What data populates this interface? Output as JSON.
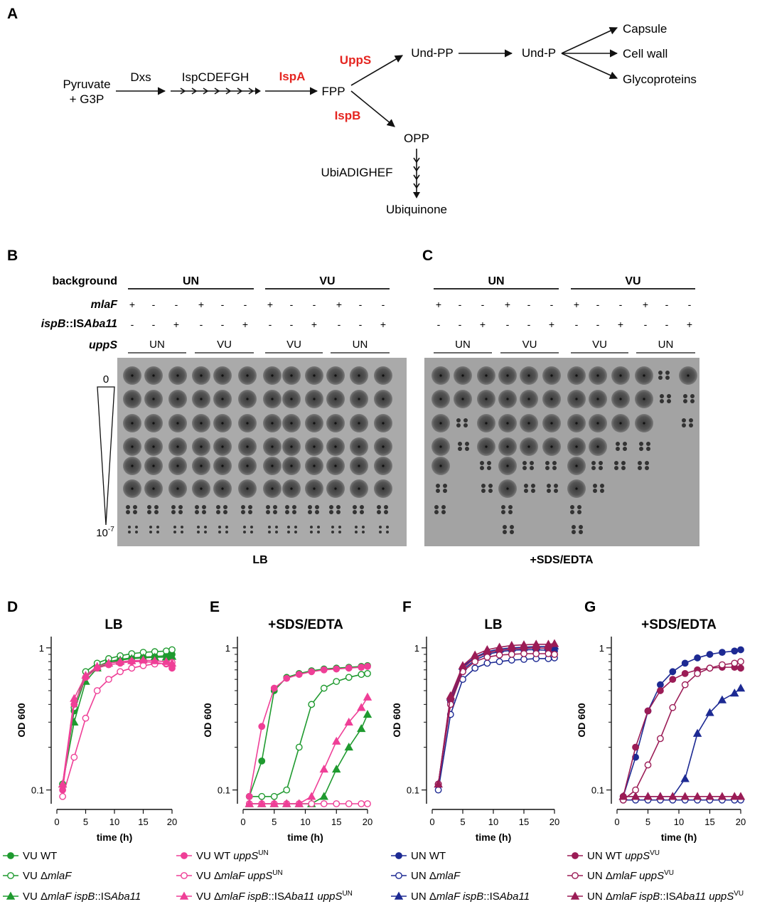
{
  "panel_letters": [
    "A",
    "B",
    "C",
    "D",
    "E",
    "F",
    "G"
  ],
  "pathway": {
    "start": [
      "Pyruvate",
      "+ G3P"
    ],
    "dxs": "Dxs",
    "isp": "IspCDEFGH",
    "ispA": "IspA",
    "fpp": "FPP",
    "uppS": "UppS",
    "ispB": "IspB",
    "undpp": "Und-PP",
    "undp": "Und-P",
    "capsule": "Capsule",
    "cellwall": "Cell wall",
    "glyco": "Glycoproteins",
    "opp": "OPP",
    "ubi": "UbiADIGHEF",
    "ubiquinone": "Ubiquinone"
  },
  "plate_grid": {
    "row_labels": {
      "background": "background",
      "mlaF": "mlaF",
      "ispB_pre": "ispB",
      "ispB_mid": "::IS",
      "ispB_it": "Aba11",
      "uppS": "uppS"
    },
    "backgrounds": [
      "UN",
      "VU"
    ],
    "uppS_groups": [
      "UN",
      "VU",
      "VU",
      "UN"
    ],
    "mlaF": [
      "+",
      "-",
      "-",
      "+",
      "-",
      "-",
      "+",
      "-",
      "-",
      "+",
      "-",
      "-"
    ],
    "ispB": [
      "-",
      "-",
      "+",
      "-",
      "-",
      "+",
      "-",
      "-",
      "+",
      "-",
      "-",
      "+"
    ],
    "dilution_top": "0",
    "dilution_bottom_base": "10",
    "dilution_bottom_exp": "-7",
    "caption_B": "LB",
    "caption_C": "+SDS/EDTA"
  },
  "chart_data": [
    {
      "type": "line",
      "panel": "D",
      "title": "LB",
      "xlabel": "time (h)",
      "ylabel": "OD 600",
      "yscale": "log",
      "xlim": [
        0,
        20
      ],
      "ylim": [
        0.08,
        1.2
      ],
      "xticks": [
        "0",
        "5",
        "10",
        "15",
        "20"
      ],
      "yticks": [
        "0.1",
        "1"
      ],
      "x": [
        1,
        3,
        5,
        7,
        9,
        11,
        13,
        15,
        17,
        19,
        20
      ],
      "series": [
        {
          "name": "VU WT",
          "color": "#1f9a2f",
          "marker": "circle",
          "filled": true,
          "values": [
            0.11,
            0.36,
            0.62,
            0.74,
            0.8,
            0.83,
            0.85,
            0.86,
            0.87,
            0.88,
            0.9
          ]
        },
        {
          "name": "VU ΔmlaF",
          "color": "#1f9a2f",
          "marker": "circle",
          "filled": false,
          "values": [
            0.11,
            0.38,
            0.68,
            0.78,
            0.84,
            0.88,
            0.91,
            0.93,
            0.94,
            0.95,
            0.97
          ]
        },
        {
          "name": "VU ΔmlaF ispB::ISAba11",
          "color": "#1f9a2f",
          "marker": "triangle",
          "filled": true,
          "values": [
            0.11,
            0.3,
            0.58,
            0.72,
            0.78,
            0.82,
            0.84,
            0.85,
            0.86,
            0.86,
            0.87
          ]
        },
        {
          "name": "VU WT uppSUN",
          "color": "#ef3f97",
          "marker": "circle",
          "filled": true,
          "values": [
            0.1,
            0.4,
            0.62,
            0.72,
            0.76,
            0.78,
            0.8,
            0.8,
            0.79,
            0.77,
            0.72
          ]
        },
        {
          "name": "VU ΔmlaF uppSUN",
          "color": "#ef3f97",
          "marker": "circle",
          "filled": false,
          "values": [
            0.09,
            0.17,
            0.32,
            0.5,
            0.6,
            0.68,
            0.72,
            0.75,
            0.77,
            0.78,
            0.79
          ]
        },
        {
          "name": "VU ΔmlaF ispB::ISAba11 uppSUN",
          "color": "#ef3f97",
          "marker": "triangle",
          "filled": true,
          "values": [
            0.11,
            0.44,
            0.64,
            0.74,
            0.78,
            0.8,
            0.81,
            0.82,
            0.81,
            0.8,
            0.78
          ]
        }
      ]
    },
    {
      "type": "line",
      "panel": "E",
      "title": "+SDS/EDTA",
      "xlabel": "time (h)",
      "ylabel": "OD 600",
      "yscale": "log",
      "xlim": [
        0,
        20
      ],
      "ylim": [
        0.08,
        1.2
      ],
      "xticks": [
        "0",
        "5",
        "10",
        "15",
        "20"
      ],
      "yticks": [
        "0.1",
        "1"
      ],
      "x": [
        1,
        3,
        5,
        7,
        9,
        11,
        13,
        15,
        17,
        19,
        20
      ],
      "series": [
        {
          "name": "VU WT",
          "color": "#1f9a2f",
          "marker": "circle",
          "filled": true,
          "values": [
            0.09,
            0.16,
            0.5,
            0.62,
            0.66,
            0.69,
            0.71,
            0.72,
            0.73,
            0.74,
            0.75
          ]
        },
        {
          "name": "VU ΔmlaF",
          "color": "#1f9a2f",
          "marker": "circle",
          "filled": false,
          "values": [
            0.09,
            0.09,
            0.09,
            0.1,
            0.2,
            0.4,
            0.52,
            0.58,
            0.62,
            0.65,
            0.66
          ]
        },
        {
          "name": "VU ΔmlaF ispB::ISAba11",
          "color": "#1f9a2f",
          "marker": "triangle",
          "filled": true,
          "values": [
            0.08,
            0.08,
            0.08,
            0.08,
            0.08,
            0.08,
            0.09,
            0.14,
            0.2,
            0.27,
            0.34
          ]
        },
        {
          "name": "VU WT uppSUN",
          "color": "#ef3f97",
          "marker": "circle",
          "filled": true,
          "values": [
            0.09,
            0.28,
            0.52,
            0.61,
            0.65,
            0.68,
            0.7,
            0.71,
            0.72,
            0.73,
            0.74
          ]
        },
        {
          "name": "VU ΔmlaF uppSUN",
          "color": "#ef3f97",
          "marker": "circle",
          "filled": false,
          "values": [
            0.08,
            0.08,
            0.08,
            0.08,
            0.08,
            0.08,
            0.08,
            0.08,
            0.08,
            0.08,
            0.08
          ]
        },
        {
          "name": "VU ΔmlaF ispB::ISAba11 uppSUN",
          "color": "#ef3f97",
          "marker": "triangle",
          "filled": true,
          "values": [
            0.08,
            0.08,
            0.08,
            0.08,
            0.08,
            0.09,
            0.14,
            0.22,
            0.3,
            0.38,
            0.45
          ]
        }
      ]
    },
    {
      "type": "line",
      "panel": "F",
      "title": "LB",
      "xlabel": "time (h)",
      "ylabel": "OD 600",
      "yscale": "log",
      "xlim": [
        0,
        20
      ],
      "ylim": [
        0.08,
        1.2
      ],
      "xticks": [
        "0",
        "5",
        "10",
        "15",
        "20"
      ],
      "yticks": [
        "0.1",
        "1"
      ],
      "x": [
        1,
        3,
        5,
        7,
        9,
        11,
        13,
        15,
        17,
        19,
        20
      ],
      "series": [
        {
          "name": "UN WT",
          "color": "#1d2a93",
          "marker": "circle",
          "filled": true,
          "values": [
            0.11,
            0.42,
            0.7,
            0.82,
            0.9,
            0.94,
            0.96,
            0.97,
            0.97,
            0.96,
            0.95
          ]
        },
        {
          "name": "UN ΔmlaF",
          "color": "#1d2a93",
          "marker": "circle",
          "filled": false,
          "values": [
            0.1,
            0.34,
            0.6,
            0.72,
            0.78,
            0.8,
            0.82,
            0.83,
            0.84,
            0.84,
            0.85
          ]
        },
        {
          "name": "UN ΔmlaF ispB::ISAba11",
          "color": "#1d2a93",
          "marker": "triangle",
          "filled": true,
          "values": [
            0.11,
            0.45,
            0.74,
            0.86,
            0.94,
            0.98,
            1.0,
            1.01,
            1.02,
            1.02,
            1.03
          ]
        },
        {
          "name": "UN WT uppSVU",
          "color": "#9b1c56",
          "marker": "circle",
          "filled": true,
          "values": [
            0.11,
            0.43,
            0.72,
            0.85,
            0.92,
            0.96,
            0.98,
            0.99,
            1.0,
            0.99,
            0.9
          ]
        },
        {
          "name": "UN ΔmlaF uppSVU",
          "color": "#9b1c56",
          "marker": "circle",
          "filled": false,
          "values": [
            0.11,
            0.4,
            0.68,
            0.8,
            0.86,
            0.89,
            0.9,
            0.91,
            0.91,
            0.91,
            0.9
          ]
        },
        {
          "name": "UN ΔmlaF ispB::ISAba11 uppSVU",
          "color": "#9b1c56",
          "marker": "triangle",
          "filled": true,
          "values": [
            0.11,
            0.46,
            0.75,
            0.89,
            0.97,
            1.01,
            1.04,
            1.05,
            1.06,
            1.06,
            1.07
          ]
        }
      ]
    },
    {
      "type": "line",
      "panel": "G",
      "title": "+SDS/EDTA",
      "xlabel": "time (h)",
      "ylabel": "OD 600",
      "yscale": "log",
      "xlim": [
        0,
        20
      ],
      "ylim": [
        0.08,
        1.2
      ],
      "xticks": [
        "0",
        "5",
        "10",
        "15",
        "20"
      ],
      "yticks": [
        "0.1",
        "1"
      ],
      "x": [
        1,
        3,
        5,
        7,
        9,
        11,
        13,
        15,
        17,
        19,
        20
      ],
      "series": [
        {
          "name": "UN WT",
          "color": "#1d2a93",
          "marker": "circle",
          "filled": true,
          "values": [
            0.09,
            0.17,
            0.36,
            0.55,
            0.68,
            0.78,
            0.85,
            0.9,
            0.93,
            0.95,
            0.97
          ]
        },
        {
          "name": "UN ΔmlaF",
          "color": "#1d2a93",
          "marker": "circle",
          "filled": false,
          "values": [
            0.085,
            0.085,
            0.085,
            0.085,
            0.085,
            0.085,
            0.085,
            0.085,
            0.085,
            0.085,
            0.085
          ]
        },
        {
          "name": "UN ΔmlaF ispB::ISAba11",
          "color": "#1d2a93",
          "marker": "triangle",
          "filled": true,
          "values": [
            0.09,
            0.09,
            0.09,
            0.09,
            0.09,
            0.12,
            0.25,
            0.35,
            0.43,
            0.48,
            0.52
          ]
        },
        {
          "name": "UN WT uppSVU",
          "color": "#9b1c56",
          "marker": "circle",
          "filled": true,
          "values": [
            0.09,
            0.2,
            0.36,
            0.5,
            0.6,
            0.66,
            0.7,
            0.72,
            0.73,
            0.73,
            0.72
          ]
        },
        {
          "name": "UN ΔmlaF uppSVU",
          "color": "#9b1c56",
          "marker": "circle",
          "filled": false,
          "values": [
            0.085,
            0.1,
            0.15,
            0.23,
            0.38,
            0.55,
            0.66,
            0.72,
            0.76,
            0.78,
            0.8
          ]
        },
        {
          "name": "UN ΔmlaF ispB::ISAba11 uppSVU",
          "color": "#9b1c56",
          "marker": "triangle",
          "filled": true,
          "values": [
            0.09,
            0.09,
            0.09,
            0.09,
            0.09,
            0.09,
            0.09,
            0.09,
            0.09,
            0.09,
            0.09
          ]
        }
      ]
    }
  ],
  "legend": [
    {
      "color": "#1f9a2f",
      "marker": "circle",
      "filled": true,
      "parts": [
        [
          "VU WT",
          ""
        ]
      ]
    },
    {
      "color": "#1f9a2f",
      "marker": "circle",
      "filled": false,
      "parts": [
        [
          "VU Δ",
          ""
        ],
        [
          "mlaF",
          "i"
        ]
      ]
    },
    {
      "color": "#1f9a2f",
      "marker": "triangle",
      "filled": true,
      "parts": [
        [
          "VU Δ",
          ""
        ],
        [
          "mlaF ispB",
          "i"
        ],
        [
          "::IS",
          ""
        ],
        [
          "Aba11",
          "i"
        ]
      ]
    },
    {
      "color": "#ef3f97",
      "marker": "circle",
      "filled": true,
      "parts": [
        [
          "VU WT ",
          ""
        ],
        [
          "uppS",
          "i"
        ],
        [
          "UN",
          "sup"
        ]
      ]
    },
    {
      "color": "#ef3f97",
      "marker": "circle",
      "filled": false,
      "parts": [
        [
          "VU Δ",
          ""
        ],
        [
          "mlaF uppS",
          "i"
        ],
        [
          "UN",
          "sup"
        ]
      ]
    },
    {
      "color": "#ef3f97",
      "marker": "triangle",
      "filled": true,
      "parts": [
        [
          "VU Δ",
          ""
        ],
        [
          "mlaF ispB",
          "i"
        ],
        [
          "::IS",
          ""
        ],
        [
          "Aba11 uppS",
          "i"
        ],
        [
          "UN",
          "sup"
        ]
      ]
    },
    {
      "color": "#1d2a93",
      "marker": "circle",
      "filled": true,
      "parts": [
        [
          "UN WT",
          ""
        ]
      ]
    },
    {
      "color": "#1d2a93",
      "marker": "circle",
      "filled": false,
      "parts": [
        [
          "UN Δ",
          ""
        ],
        [
          "mlaF",
          "i"
        ]
      ]
    },
    {
      "color": "#1d2a93",
      "marker": "triangle",
      "filled": true,
      "parts": [
        [
          "UN Δ",
          ""
        ],
        [
          "mlaF ispB",
          "i"
        ],
        [
          "::IS",
          ""
        ],
        [
          "Aba11",
          "i"
        ]
      ]
    },
    {
      "color": "#9b1c56",
      "marker": "circle",
      "filled": true,
      "parts": [
        [
          "UN WT ",
          ""
        ],
        [
          "uppS",
          "i"
        ],
        [
          "VU",
          "sup"
        ]
      ]
    },
    {
      "color": "#9b1c56",
      "marker": "circle",
      "filled": false,
      "parts": [
        [
          "UN Δ",
          ""
        ],
        [
          "mlaF uppS",
          "i"
        ],
        [
          "VU",
          "sup"
        ]
      ]
    },
    {
      "color": "#9b1c56",
      "marker": "triangle",
      "filled": true,
      "parts": [
        [
          "UN Δ",
          ""
        ],
        [
          "mlaF ispB",
          "i"
        ],
        [
          "::IS",
          ""
        ],
        [
          "Aba11 uppS",
          "i"
        ],
        [
          "VU",
          "sup"
        ]
      ]
    }
  ]
}
